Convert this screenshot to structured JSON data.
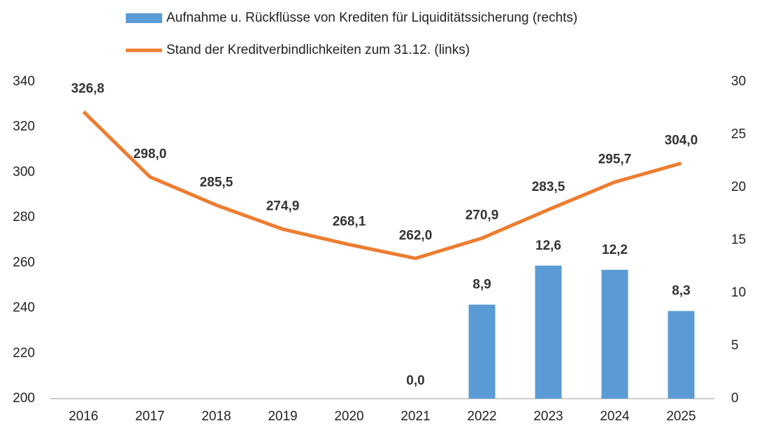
{
  "chart_data": {
    "type": "bar",
    "categories": [
      "2016",
      "2017",
      "2018",
      "2019",
      "2020",
      "2021",
      "2022",
      "2023",
      "2024",
      "2025"
    ],
    "series": [
      {
        "name": "Aufnahme u. Rückflüsse von Krediten für Liquiditätssicherung (rechts)",
        "type": "bar",
        "axis": "y2",
        "color": "#5b9bd5",
        "values": [
          null,
          null,
          null,
          null,
          null,
          0.0,
          8.9,
          12.6,
          12.2,
          8.3
        ],
        "value_labels": [
          null,
          null,
          null,
          null,
          null,
          "0,0",
          "8,9",
          "12,6",
          "12,2",
          "8,3"
        ]
      },
      {
        "name": "Stand der Kreditverbindlichkeiten zum 31.12. (links)",
        "type": "line",
        "axis": "y",
        "color": "#ed7d31",
        "values": [
          326.8,
          298.0,
          285.5,
          274.9,
          268.1,
          262.0,
          270.9,
          283.5,
          295.7,
          304.0
        ],
        "value_labels": [
          "326,8",
          "298,0",
          "285,5",
          "274,9",
          "268,1",
          "262,0",
          "270,9",
          "283,5",
          "295,7",
          "304,0"
        ]
      }
    ],
    "ylim": [
      200,
      340
    ],
    "yticks": [
      200,
      220,
      240,
      260,
      280,
      300,
      320,
      340
    ],
    "y2lim": [
      0,
      30
    ],
    "y2ticks": [
      0,
      5,
      10,
      15,
      20,
      25,
      30
    ],
    "grid": false
  }
}
